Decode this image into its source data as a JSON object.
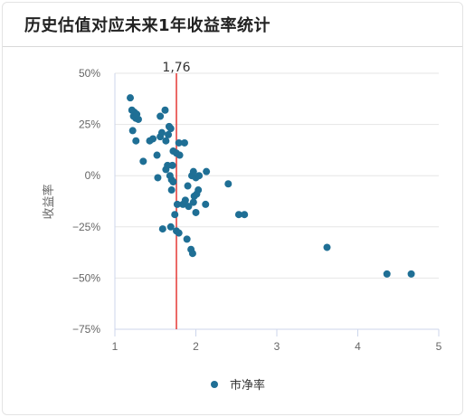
{
  "card": {
    "title": "历史估值对应未来1年收益率统计"
  },
  "chart_data": {
    "type": "scatter",
    "title": "",
    "xlabel": "",
    "ylabel": "收益率",
    "xlim": [
      1,
      5
    ],
    "ylim": [
      -75,
      50
    ],
    "x_ticks": [
      1,
      2,
      3,
      4,
      5
    ],
    "y_ticks": [
      50,
      25,
      0,
      -25,
      -50,
      -75
    ],
    "y_tick_labels": [
      "50%",
      "25%",
      "0%",
      "−25%",
      "−50%",
      "−75%"
    ],
    "grid": "horizontal",
    "legend_position": "bottom-center",
    "reference_line": {
      "x": 1.76,
      "label": "1,76",
      "color": "#e53935"
    },
    "series": [
      {
        "name": "市净率",
        "color": "#1f6f95",
        "points": [
          [
            1.19,
            38
          ],
          [
            1.21,
            32
          ],
          [
            1.23,
            29
          ],
          [
            1.24,
            31
          ],
          [
            1.26,
            28
          ],
          [
            1.29,
            27.5
          ],
          [
            1.27,
            30
          ],
          [
            1.22,
            22
          ],
          [
            1.26,
            17
          ],
          [
            1.35,
            7
          ],
          [
            1.43,
            17
          ],
          [
            1.47,
            18
          ],
          [
            1.56,
            19
          ],
          [
            1.58,
            21
          ],
          [
            1.56,
            29
          ],
          [
            1.62,
            32
          ],
          [
            1.63,
            17
          ],
          [
            1.66,
            20
          ],
          [
            1.67,
            24
          ],
          [
            1.69,
            23
          ],
          [
            1.52,
            10
          ],
          [
            1.63,
            3
          ],
          [
            1.65,
            5
          ],
          [
            1.71,
            5
          ],
          [
            1.72,
            12
          ],
          [
            1.76,
            11
          ],
          [
            1.79,
            16
          ],
          [
            1.8,
            10
          ],
          [
            1.86,
            16
          ],
          [
            1.53,
            -1
          ],
          [
            1.68,
            0
          ],
          [
            1.7,
            -2
          ],
          [
            1.72,
            -3
          ],
          [
            1.7,
            -7
          ],
          [
            1.84,
            -14
          ],
          [
            1.87,
            -12
          ],
          [
            1.9,
            -5
          ],
          [
            1.91,
            -15
          ],
          [
            1.95,
            0
          ],
          [
            1.97,
            2
          ],
          [
            2.0,
            -1
          ],
          [
            2.03,
            -7
          ],
          [
            1.98,
            -10
          ],
          [
            2.01,
            -9
          ],
          [
            1.97,
            -13
          ],
          [
            2.04,
            0
          ],
          [
            2.13,
            2
          ],
          [
            2.12,
            -14
          ],
          [
            2.0,
            -18
          ],
          [
            1.74,
            -19
          ],
          [
            1.77,
            -14
          ],
          [
            1.59,
            -26
          ],
          [
            1.69,
            -25
          ],
          [
            1.76,
            -27
          ],
          [
            1.79,
            -28
          ],
          [
            1.89,
            -31
          ],
          [
            1.94,
            -36
          ],
          [
            1.96,
            -38
          ],
          [
            2.4,
            -4
          ],
          [
            2.53,
            -19
          ],
          [
            2.6,
            -19
          ],
          [
            3.62,
            -35
          ],
          [
            4.36,
            -48
          ],
          [
            4.66,
            -48
          ]
        ]
      }
    ]
  }
}
